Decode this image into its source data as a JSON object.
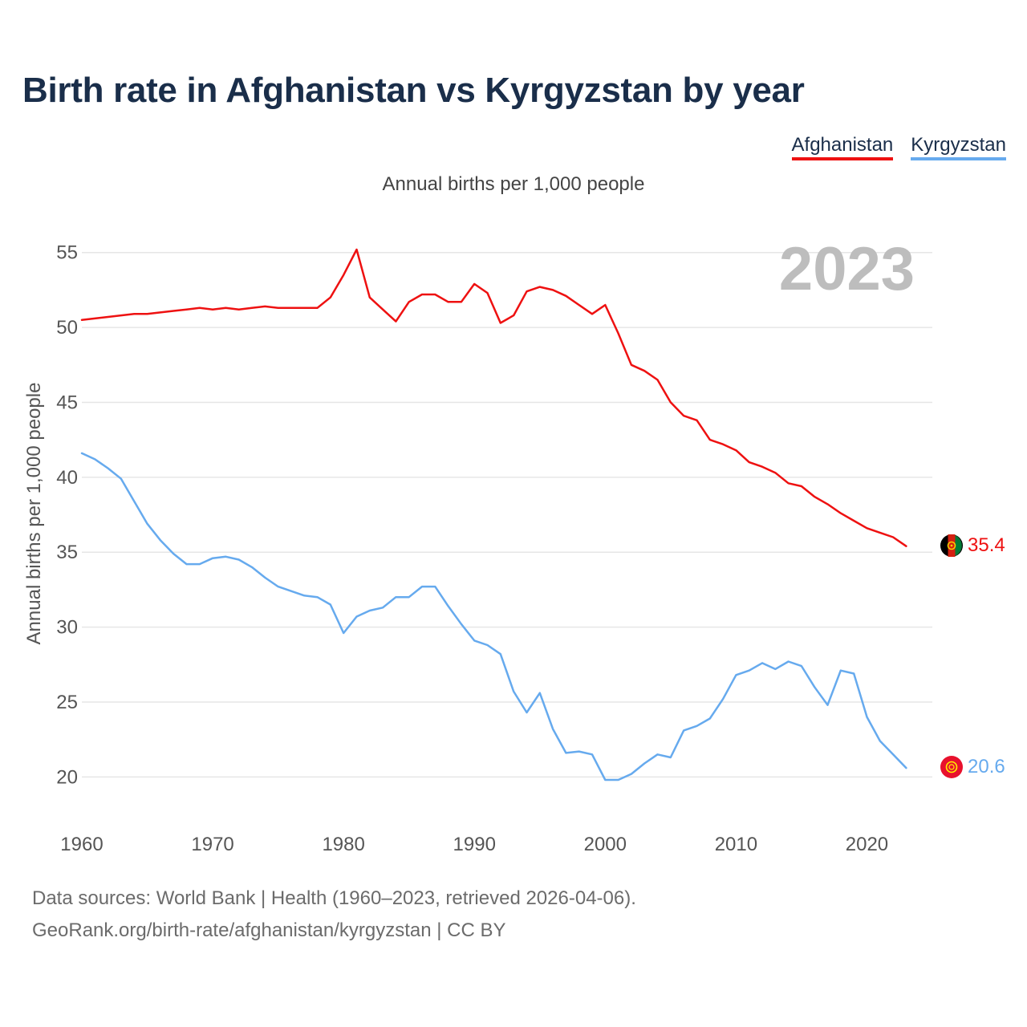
{
  "title": "Birth rate in Afghanistan vs Kyrgyzstan by year",
  "subtitle": "Annual births per 1,000 people",
  "legend": [
    {
      "name": "Afghanistan",
      "color": "#ee1111"
    },
    {
      "name": "Kyrgyzstan",
      "color": "#66aaee"
    }
  ],
  "footer": {
    "line1": "Data sources: World Bank | Health (1960–2023, retrieved 2026-04-06).",
    "line2": "GeoRank.org/birth-rate/afghanistan/kyrgyzstan | CC BY"
  },
  "year_watermark": "2023",
  "end_labels": {
    "afghanistan": "35.4",
    "kyrgyzstan": "20.6"
  },
  "flags": {
    "afghanistan": "afghanistan-flag-icon",
    "kyrgyzstan": "kyrgyzstan-flag-icon"
  },
  "chart_data": {
    "type": "line",
    "title": "Birth rate in Afghanistan vs Kyrgyzstan by year",
    "ylabel": "Annual births per 1,000 people",
    "xlabel": "",
    "xlim": [
      1960,
      2025
    ],
    "ylim": [
      17.5,
      57.5
    ],
    "xticks": [
      1960,
      1970,
      1980,
      1990,
      2000,
      2010,
      2020
    ],
    "yticks": [
      20,
      25,
      30,
      35,
      40,
      45,
      50,
      55
    ],
    "grid": true,
    "legend_position": "top-right",
    "x": [
      1960,
      1961,
      1962,
      1963,
      1964,
      1965,
      1966,
      1967,
      1968,
      1969,
      1970,
      1971,
      1972,
      1973,
      1974,
      1975,
      1976,
      1977,
      1978,
      1979,
      1980,
      1981,
      1982,
      1983,
      1984,
      1985,
      1986,
      1987,
      1988,
      1989,
      1990,
      1991,
      1992,
      1993,
      1994,
      1995,
      1996,
      1997,
      1998,
      1999,
      2000,
      2001,
      2002,
      2003,
      2004,
      2005,
      2006,
      2007,
      2008,
      2009,
      2010,
      2011,
      2012,
      2013,
      2014,
      2015,
      2016,
      2017,
      2018,
      2019,
      2020,
      2021,
      2022,
      2023
    ],
    "series": [
      {
        "name": "Afghanistan",
        "color": "#ee1111",
        "values": [
          50.5,
          50.6,
          50.7,
          50.8,
          50.9,
          50.9,
          51.0,
          51.1,
          51.2,
          51.3,
          51.2,
          51.3,
          51.2,
          51.3,
          51.4,
          51.3,
          51.3,
          51.3,
          51.3,
          52.0,
          53.5,
          55.2,
          52.0,
          51.2,
          50.4,
          51.7,
          52.2,
          52.2,
          51.7,
          51.7,
          52.9,
          52.3,
          50.3,
          50.8,
          52.4,
          52.7,
          52.5,
          52.1,
          51.5,
          50.9,
          51.5,
          49.6,
          47.5,
          47.1,
          46.5,
          45.0,
          44.1,
          43.8,
          42.5,
          42.2,
          41.8,
          41.0,
          40.7,
          40.3,
          39.6,
          39.4,
          38.7,
          38.2,
          37.6,
          37.1,
          36.6,
          36.3,
          36.0,
          35.4
        ]
      },
      {
        "name": "Kyrgyzstan",
        "color": "#66aaee",
        "values": [
          41.6,
          41.2,
          40.6,
          39.9,
          38.4,
          36.9,
          35.8,
          34.9,
          34.2,
          34.2,
          34.6,
          34.7,
          34.5,
          34.0,
          33.3,
          32.7,
          32.4,
          32.1,
          32.0,
          31.5,
          29.6,
          30.7,
          31.1,
          31.3,
          32.0,
          32.0,
          32.7,
          32.7,
          31.4,
          30.2,
          29.1,
          28.8,
          28.2,
          25.7,
          24.3,
          25.6,
          23.2,
          21.6,
          21.7,
          21.5,
          19.8,
          19.8,
          20.2,
          20.9,
          21.5,
          21.3,
          23.1,
          23.4,
          23.9,
          25.2,
          26.8,
          27.1,
          27.6,
          27.2,
          27.7,
          27.4,
          26.0,
          24.8,
          27.1,
          26.9,
          24.0,
          22.4,
          21.5,
          20.6
        ]
      }
    ]
  }
}
